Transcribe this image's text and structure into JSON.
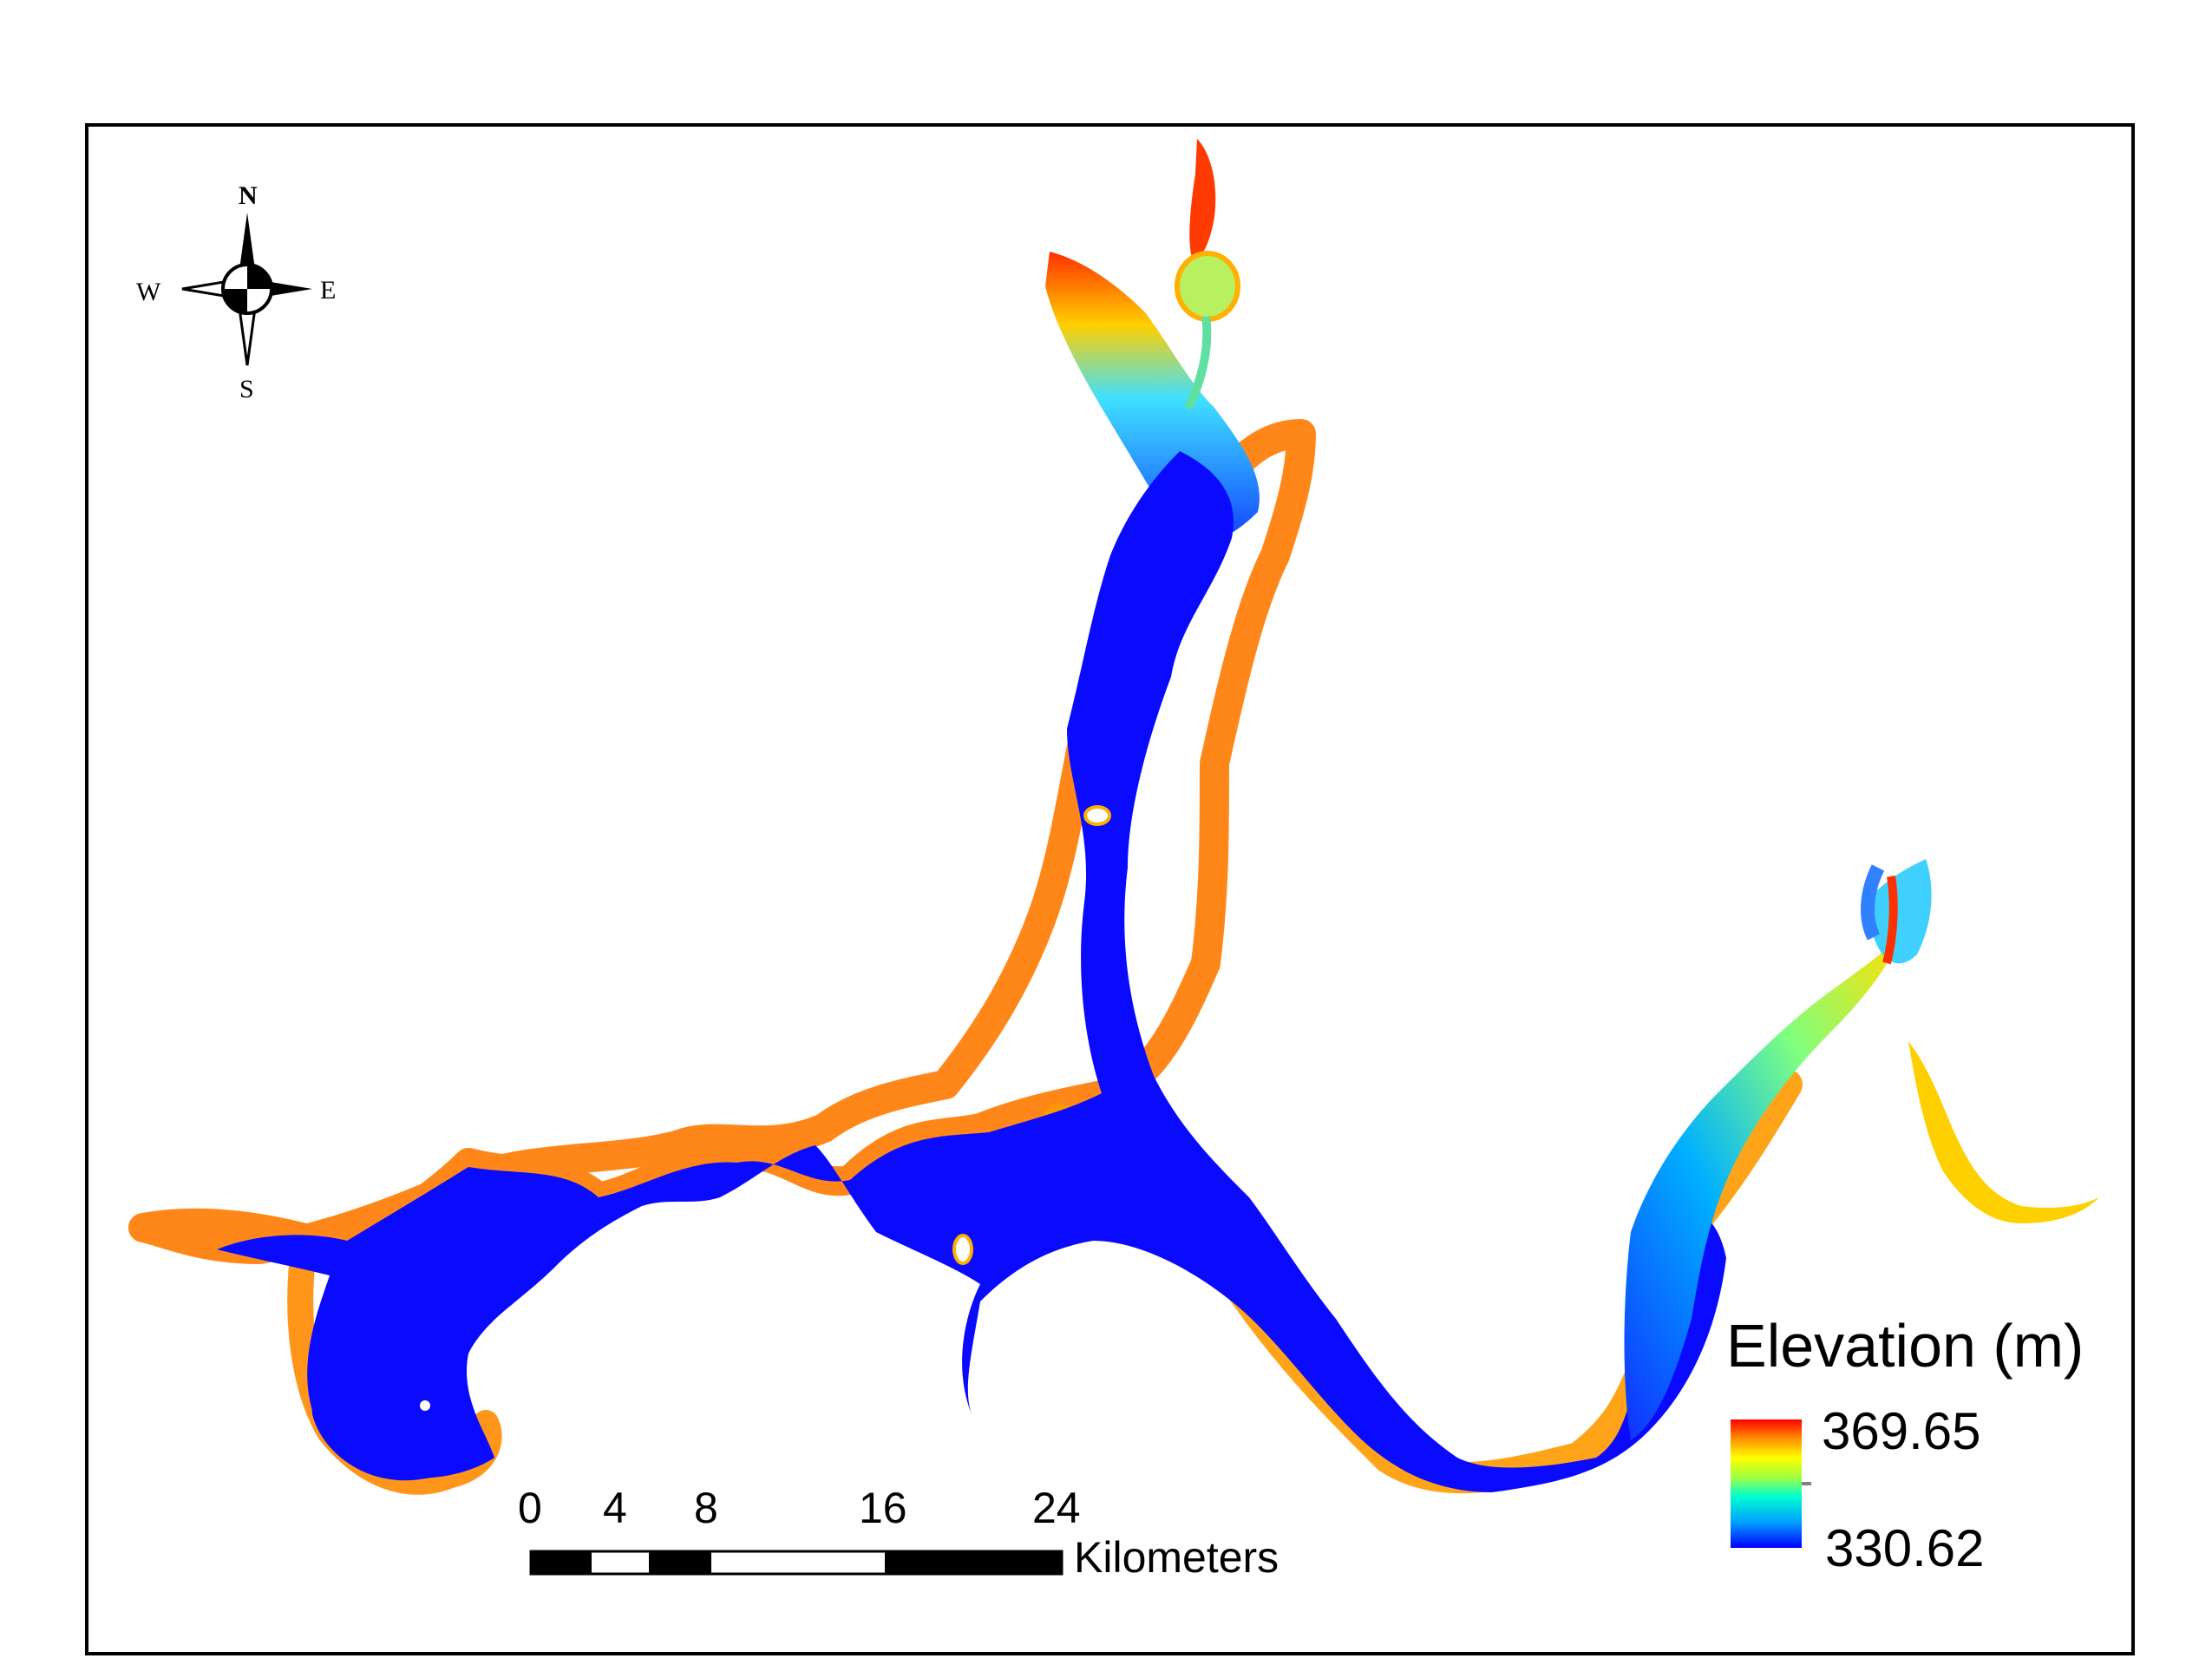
{
  "compass": {
    "north": "N",
    "south": "S",
    "east": "E",
    "west": "W",
    "icon": "north-arrow-compass-rose"
  },
  "scale_bar": {
    "ticks": [
      "0",
      "4",
      "8",
      "16",
      "24"
    ],
    "unit": "Kilometers",
    "fill_colors": [
      "#000000",
      "#ffffff"
    ]
  },
  "legend": {
    "title": "Elevation (m)",
    "max_label": "369.65",
    "min_label": "330.62",
    "gradient_colors": [
      "#0000ff",
      "#00a0ff",
      "#00ffd0",
      "#a0ff40",
      "#ffff00",
      "#ff9000",
      "#ff0000"
    ]
  },
  "colors": {
    "frame": "#000000",
    "background": "#ffffff",
    "deep_water": "#0a0aff"
  }
}
